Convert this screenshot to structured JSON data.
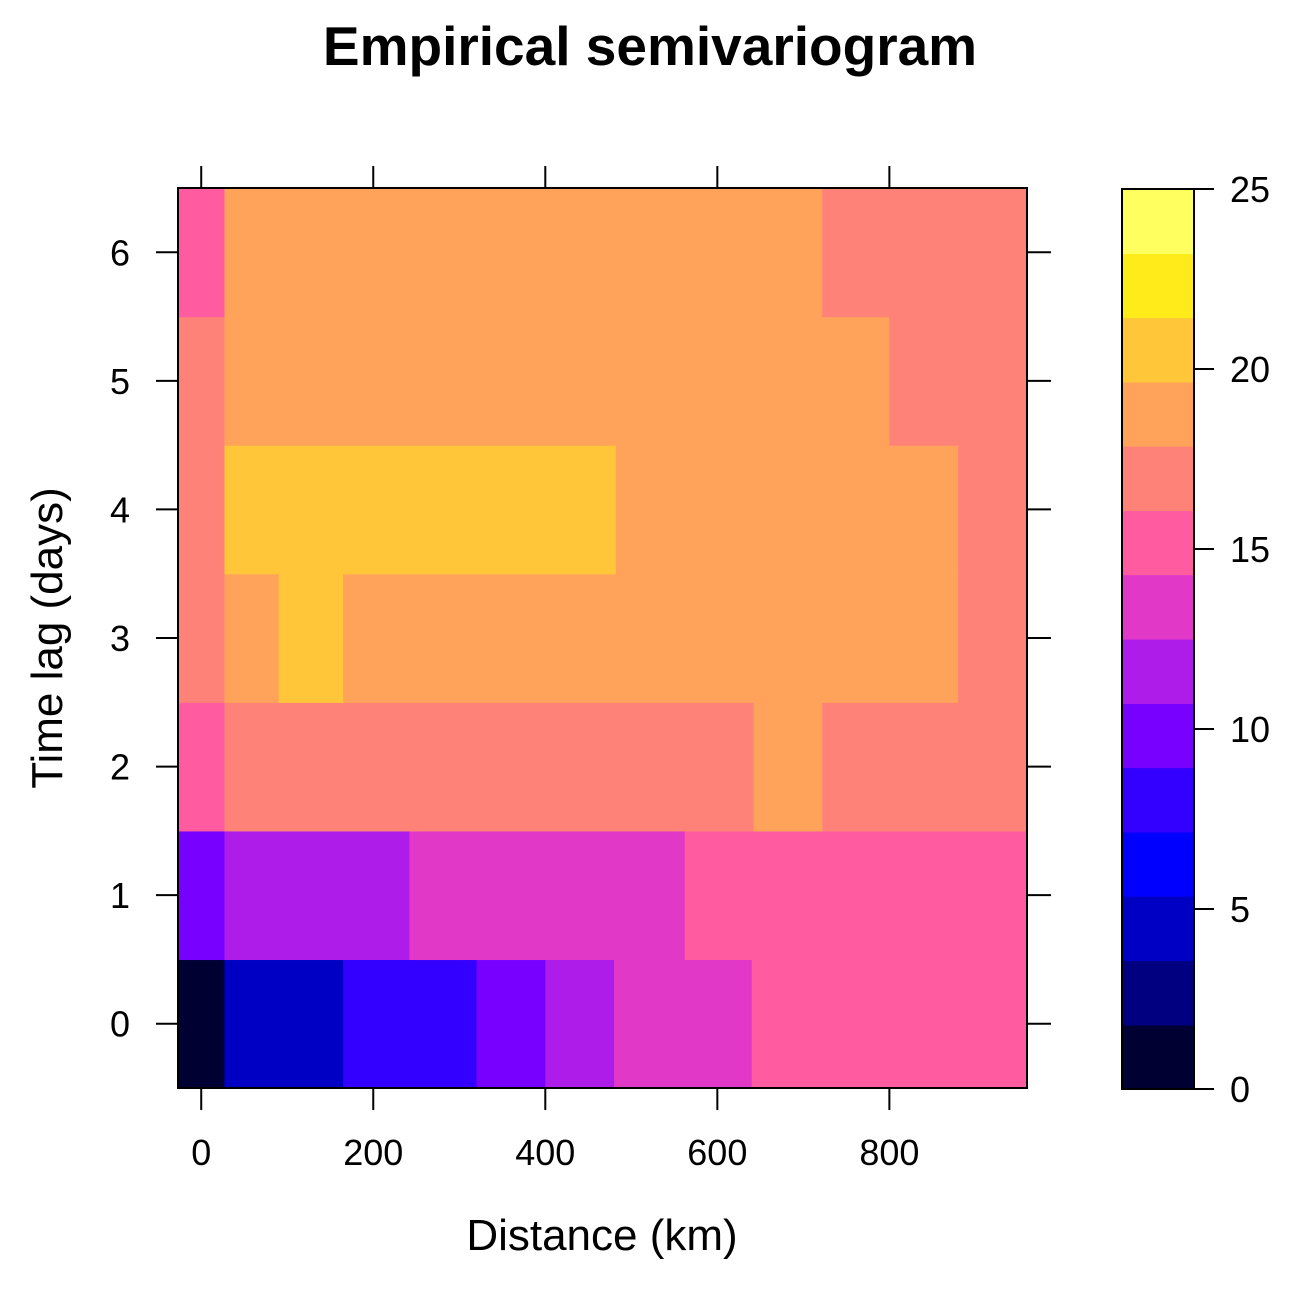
{
  "chart_data": {
    "type": "heatmap",
    "title": "Empirical semivariogram",
    "xlabel": "Distance (km)",
    "ylabel": "Time lag (days)",
    "xlim": [
      -27,
      960
    ],
    "ylim": [
      -0.5,
      6.5
    ],
    "x_ticks": [
      0,
      200,
      400,
      600,
      800
    ],
    "y_ticks": [
      0,
      1,
      2,
      3,
      4,
      5,
      6
    ],
    "colorbar": {
      "ticks": [
        0,
        5,
        10,
        15,
        20,
        25
      ],
      "range": [
        0,
        25
      ],
      "bins": [
        {
          "from": 0,
          "to": 1.78,
          "color": "#000033"
        },
        {
          "from": 1.78,
          "to": 3.57,
          "color": "#000080"
        },
        {
          "from": 3.57,
          "to": 5.36,
          "color": "#0000C4"
        },
        {
          "from": 5.36,
          "to": 7.14,
          "color": "#0000FF"
        },
        {
          "from": 7.14,
          "to": 8.93,
          "color": "#3300FF"
        },
        {
          "from": 8.93,
          "to": 10.71,
          "color": "#7700FF"
        },
        {
          "from": 10.71,
          "to": 12.5,
          "color": "#AD1CE8"
        },
        {
          "from": 12.5,
          "to": 14.29,
          "color": "#E238C8"
        },
        {
          "from": 14.29,
          "to": 16.07,
          "color": "#FF5BA1"
        },
        {
          "from": 16.07,
          "to": 17.86,
          "color": "#FF8279"
        },
        {
          "from": 17.86,
          "to": 19.64,
          "color": "#FFA35A"
        },
        {
          "from": 19.64,
          "to": 21.43,
          "color": "#FFC639"
        },
        {
          "from": 21.43,
          "to": 23.21,
          "color": "#FFEB1A"
        },
        {
          "from": 23.21,
          "to": 25,
          "color": "#FFFF60"
        }
      ]
    },
    "cells": [
      {
        "t": 0,
        "x0": -27,
        "x1": 27,
        "value": 0.5
      },
      {
        "t": 0,
        "x0": 27,
        "x1": 165,
        "value": 4.5
      },
      {
        "t": 0,
        "x0": 165,
        "x1": 320,
        "value": 8
      },
      {
        "t": 0,
        "x0": 320,
        "x1": 400,
        "value": 10
      },
      {
        "t": 0,
        "x0": 400,
        "x1": 480,
        "value": 11.5
      },
      {
        "t": 0,
        "x0": 480,
        "x1": 640,
        "value": 13.5
      },
      {
        "t": 0,
        "x0": 640,
        "x1": 960,
        "value": 15
      },
      {
        "t": 1,
        "x0": -27,
        "x1": 27,
        "value": 10
      },
      {
        "t": 1,
        "x0": 27,
        "x1": 242,
        "value": 11.5
      },
      {
        "t": 1,
        "x0": 242,
        "x1": 562,
        "value": 13.5
      },
      {
        "t": 1,
        "x0": 562,
        "x1": 960,
        "value": 15
      },
      {
        "t": 2,
        "x0": -27,
        "x1": 27,
        "value": 15
      },
      {
        "t": 2,
        "x0": 27,
        "x1": 642,
        "value": 17
      },
      {
        "t": 2,
        "x0": 642,
        "x1": 722,
        "value": 19
      },
      {
        "t": 2,
        "x0": 722,
        "x1": 960,
        "value": 17
      },
      {
        "t": 3,
        "x0": -27,
        "x1": 27,
        "value": 17
      },
      {
        "t": 3,
        "x0": 27,
        "x1": 90,
        "value": 19
      },
      {
        "t": 3,
        "x0": 90,
        "x1": 165,
        "value": 20.5
      },
      {
        "t": 3,
        "x0": 165,
        "x1": 880,
        "value": 19
      },
      {
        "t": 3,
        "x0": 880,
        "x1": 960,
        "value": 17
      },
      {
        "t": 4,
        "x0": -27,
        "x1": 27,
        "value": 17
      },
      {
        "t": 4,
        "x0": 27,
        "x1": 482,
        "value": 20.5
      },
      {
        "t": 4,
        "x0": 482,
        "x1": 880,
        "value": 19
      },
      {
        "t": 4,
        "x0": 880,
        "x1": 960,
        "value": 17
      },
      {
        "t": 5,
        "x0": -27,
        "x1": 27,
        "value": 17
      },
      {
        "t": 5,
        "x0": 27,
        "x1": 800,
        "value": 19
      },
      {
        "t": 5,
        "x0": 800,
        "x1": 960,
        "value": 17
      },
      {
        "t": 6,
        "x0": -27,
        "x1": 27,
        "value": 15
      },
      {
        "t": 6,
        "x0": 27,
        "x1": 722,
        "value": 19
      },
      {
        "t": 6,
        "x0": 722,
        "x1": 960,
        "value": 17
      }
    ]
  }
}
